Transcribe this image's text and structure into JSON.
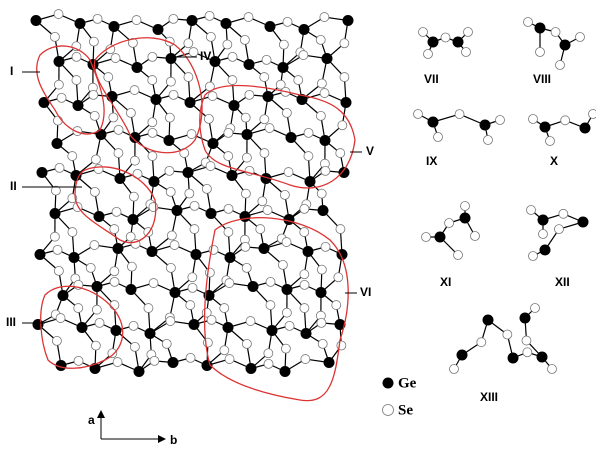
{
  "lattice_labels": [
    "I",
    "II",
    "III",
    "IV",
    "V",
    "VI"
  ],
  "cluster_labels": [
    "VII",
    "VIII",
    "IX",
    "X",
    "XI",
    "XII",
    "XIII"
  ],
  "legend": {
    "ge": "Ge",
    "se": "Se"
  },
  "axes": {
    "a": "a",
    "b": "b"
  }
}
